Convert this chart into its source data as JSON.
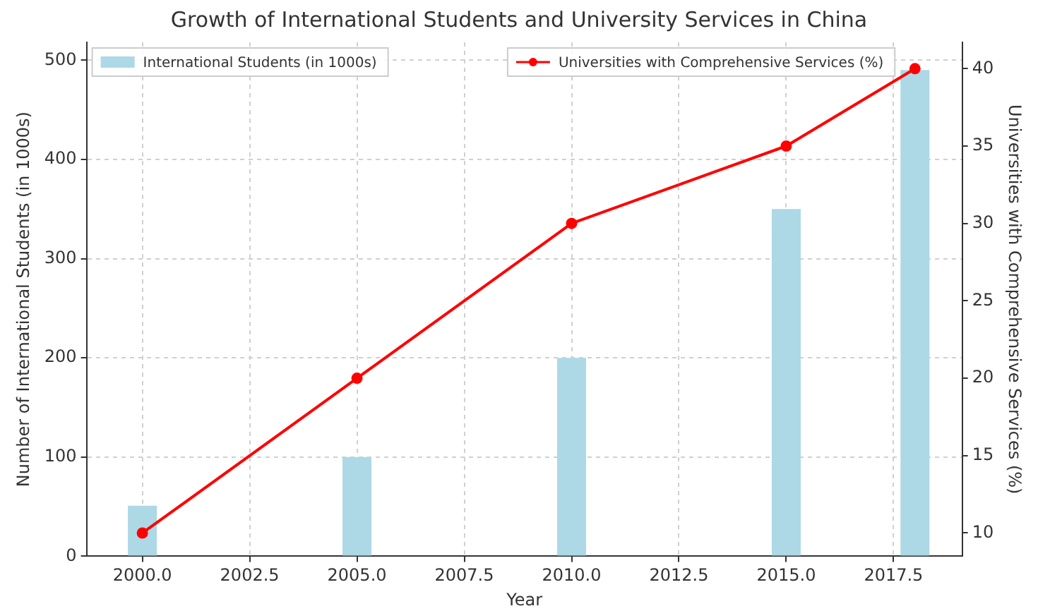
{
  "chart_data": {
    "type": "bar",
    "title": "Growth of International Students and University Services in China",
    "xlabel": "Year",
    "ylabel": "Number of International Students (in 1000s)",
    "y2label": "Universities with Comprehensive Services (%)",
    "x": [
      2000,
      2005,
      2010,
      2015,
      2018
    ],
    "series": [
      {
        "name": "International Students (in 1000s)",
        "type": "bar",
        "color": "#add8e6",
        "values": [
          51,
          100,
          200,
          350,
          490
        ]
      },
      {
        "name": "Universities with Comprehensive Services (%)",
        "type": "line",
        "axis": "y2",
        "color": "#ff0000",
        "values": [
          10,
          20,
          30,
          35,
          40
        ]
      }
    ],
    "xlim": [
      1998.7,
      2019.1
    ],
    "xticks": [
      {
        "value": 2000,
        "label": "2000.0"
      },
      {
        "value": 2002.5,
        "label": "2002.5"
      },
      {
        "value": 2005,
        "label": "2005.0"
      },
      {
        "value": 2007.5,
        "label": "2007.5"
      },
      {
        "value": 2010,
        "label": "2010.0"
      },
      {
        "value": 2012.5,
        "label": "2012.5"
      },
      {
        "value": 2015,
        "label": "2015.0"
      },
      {
        "value": 2017.5,
        "label": "2017.5"
      }
    ],
    "ylim": [
      0,
      518
    ],
    "yticks": [
      0,
      100,
      200,
      300,
      400,
      500
    ],
    "y2lim": [
      8.5,
      41.7
    ],
    "y2ticks": [
      10,
      15,
      20,
      25,
      30,
      35,
      40
    ],
    "grid": true,
    "legend": "top",
    "marker": "circle",
    "line_style": "solid"
  }
}
